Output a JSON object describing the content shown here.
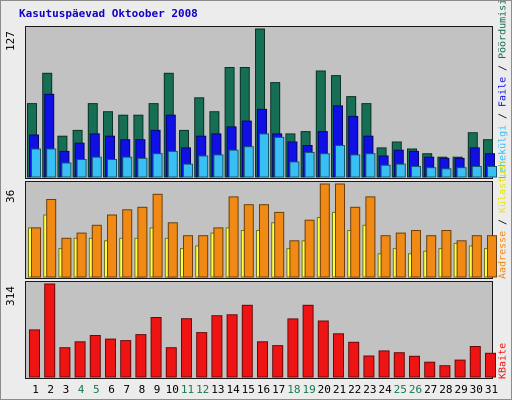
{
  "title": "Kasutuspäevad Oktoober 2008",
  "chart_data": [
    {
      "type": "bar",
      "panel": "top",
      "ymax_label": "127",
      "ylim": [
        0,
        127
      ],
      "categories": [
        "1",
        "2",
        "3",
        "4",
        "5",
        "6",
        "7",
        "8",
        "9",
        "10",
        "11",
        "12",
        "13",
        "14",
        "15",
        "16",
        "17",
        "18",
        "19",
        "20",
        "21",
        "22",
        "23",
        "24",
        "25",
        "26",
        "27",
        "28",
        "29",
        "30",
        "31"
      ],
      "series": [
        {
          "name": "Pöördumisi",
          "color": "#166e55",
          "values": [
            63,
            89,
            35,
            40,
            63,
            56,
            53,
            53,
            63,
            89,
            40,
            68,
            56,
            94,
            94,
            127,
            81,
            37,
            39,
            91,
            87,
            69,
            63,
            25,
            30,
            24,
            20,
            17,
            17,
            38,
            32
          ]
        },
        {
          "name": "Faile",
          "color": "#1010e6",
          "values": [
            36,
            71,
            22,
            29,
            37,
            35,
            32,
            32,
            40,
            53,
            25,
            35,
            37,
            43,
            48,
            58,
            37,
            30,
            27,
            39,
            61,
            52,
            35,
            18,
            23,
            22,
            17,
            16,
            16,
            25,
            20
          ]
        },
        {
          "name": "Lehekülgi",
          "color": "#38c0f5",
          "values": [
            24,
            24,
            12,
            15,
            17,
            15,
            17,
            16,
            20,
            22,
            11,
            18,
            19,
            23,
            26,
            37,
            34,
            13,
            21,
            20,
            27,
            19,
            20,
            10,
            11,
            9,
            8,
            7,
            8,
            9,
            9
          ]
        }
      ]
    },
    {
      "type": "bar",
      "panel": "middle",
      "ymax_label": "36",
      "ylim": [
        0,
        36
      ],
      "categories": [
        "1",
        "2",
        "3",
        "4",
        "5",
        "6",
        "7",
        "8",
        "9",
        "10",
        "11",
        "12",
        "13",
        "14",
        "15",
        "16",
        "17",
        "18",
        "19",
        "20",
        "21",
        "22",
        "23",
        "24",
        "25",
        "26",
        "27",
        "28",
        "29",
        "30",
        "31"
      ],
      "series": [
        {
          "name": "Külastusi",
          "color": "#ffff3c",
          "values": [
            19,
            24,
            11,
            15,
            15,
            14,
            15,
            15,
            19,
            15,
            11,
            12,
            17,
            19,
            18,
            18,
            21,
            11,
            14,
            23,
            25,
            18,
            20,
            9,
            11,
            9,
            10,
            11,
            13,
            12,
            11
          ]
        },
        {
          "name": "Aadresse",
          "color": "#f08a14",
          "values": [
            19,
            30,
            15,
            17,
            20,
            24,
            26,
            27,
            32,
            21,
            16,
            16,
            19,
            31,
            28,
            28,
            25,
            14,
            22,
            36,
            36,
            27,
            31,
            16,
            17,
            18,
            16,
            18,
            14,
            16,
            16
          ]
        }
      ]
    },
    {
      "type": "bar",
      "panel": "bottom",
      "ymax_label": "314",
      "ylim": [
        0,
        314
      ],
      "categories": [
        "1",
        "2",
        "3",
        "4",
        "5",
        "6",
        "7",
        "8",
        "9",
        "10",
        "11",
        "12",
        "13",
        "14",
        "15",
        "16",
        "17",
        "18",
        "19",
        "20",
        "21",
        "22",
        "23",
        "24",
        "25",
        "26",
        "27",
        "28",
        "29",
        "30",
        "31"
      ],
      "series": [
        {
          "name": "KBaite",
          "color": "#ee1414",
          "values": [
            159,
            314,
            99,
            119,
            140,
            128,
            123,
            143,
            201,
            99,
            197,
            150,
            207,
            210,
            242,
            119,
            106,
            196,
            242,
            189,
            146,
            117,
            71,
            88,
            82,
            70,
            50,
            38,
            57,
            103,
            80
          ]
        }
      ]
    }
  ],
  "x_ticks": [
    {
      "label": "1",
      "weekend": false
    },
    {
      "label": "2",
      "weekend": false
    },
    {
      "label": "3",
      "weekend": false
    },
    {
      "label": "4",
      "weekend": true
    },
    {
      "label": "5",
      "weekend": true
    },
    {
      "label": "6",
      "weekend": false
    },
    {
      "label": "7",
      "weekend": false
    },
    {
      "label": "8",
      "weekend": false
    },
    {
      "label": "9",
      "weekend": false
    },
    {
      "label": "10",
      "weekend": false
    },
    {
      "label": "11",
      "weekend": true
    },
    {
      "label": "12",
      "weekend": true
    },
    {
      "label": "13",
      "weekend": false
    },
    {
      "label": "14",
      "weekend": false
    },
    {
      "label": "15",
      "weekend": false
    },
    {
      "label": "16",
      "weekend": false
    },
    {
      "label": "17",
      "weekend": false
    },
    {
      "label": "18",
      "weekend": true
    },
    {
      "label": "19",
      "weekend": true
    },
    {
      "label": "20",
      "weekend": false
    },
    {
      "label": "21",
      "weekend": false
    },
    {
      "label": "22",
      "weekend": false
    },
    {
      "label": "23",
      "weekend": false
    },
    {
      "label": "24",
      "weekend": false
    },
    {
      "label": "25",
      "weekend": true
    },
    {
      "label": "26",
      "weekend": true
    },
    {
      "label": "27",
      "weekend": false
    },
    {
      "label": "28",
      "weekend": false
    },
    {
      "label": "29",
      "weekend": false
    },
    {
      "label": "30",
      "weekend": false
    },
    {
      "label": "31",
      "weekend": false
    }
  ],
  "colors": {
    "weekend_tick": "#157a4c",
    "separator": "#000000"
  }
}
